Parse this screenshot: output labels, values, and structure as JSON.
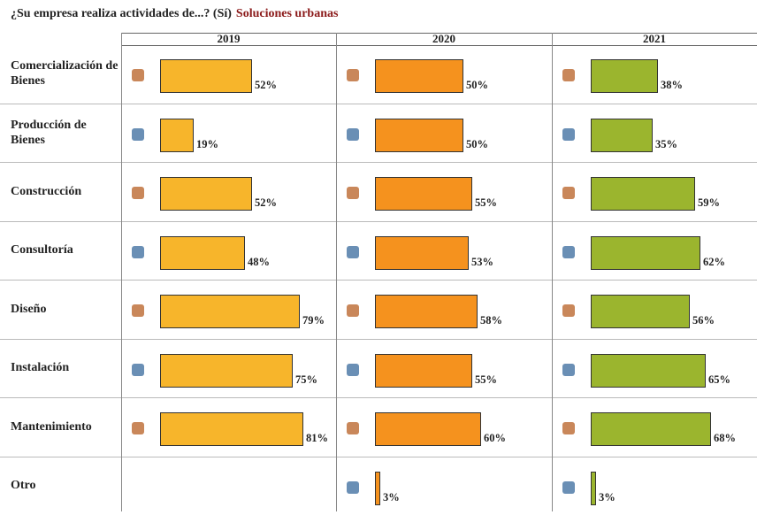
{
  "chart_data": {
    "type": "bar",
    "title": "¿Su empresa realiza actividades de...? (Sí)",
    "subtitle": "Soluciones urbanas",
    "categories": [
      "Comercialización de Bienes",
      "Producción de Bienes",
      "Construcción",
      "Consultoría",
      "Diseño",
      "Instalación",
      "Mantenimiento",
      "Otro"
    ],
    "series": [
      {
        "name": "2019",
        "color": "#f7b52b",
        "values": [
          52,
          19,
          52,
          48,
          79,
          75,
          81,
          null
        ],
        "value_labels": [
          "52%",
          "19%",
          "52%",
          "48%",
          "79%",
          "75%",
          "81%",
          null
        ]
      },
      {
        "name": "2020",
        "color": "#f5921e",
        "values": [
          50,
          50,
          55,
          53,
          58,
          55,
          60,
          3
        ],
        "value_labels": [
          "50%",
          "50%",
          "55%",
          "53%",
          "58%",
          "55%",
          "60%",
          "3%"
        ]
      },
      {
        "name": "2021",
        "color": "#9bb52e",
        "values": [
          38,
          35,
          59,
          62,
          56,
          65,
          68,
          3
        ],
        "value_labels": [
          "38%",
          "35%",
          "59%",
          "62%",
          "56%",
          "65%",
          "68%",
          "3%"
        ]
      }
    ]
  }
}
